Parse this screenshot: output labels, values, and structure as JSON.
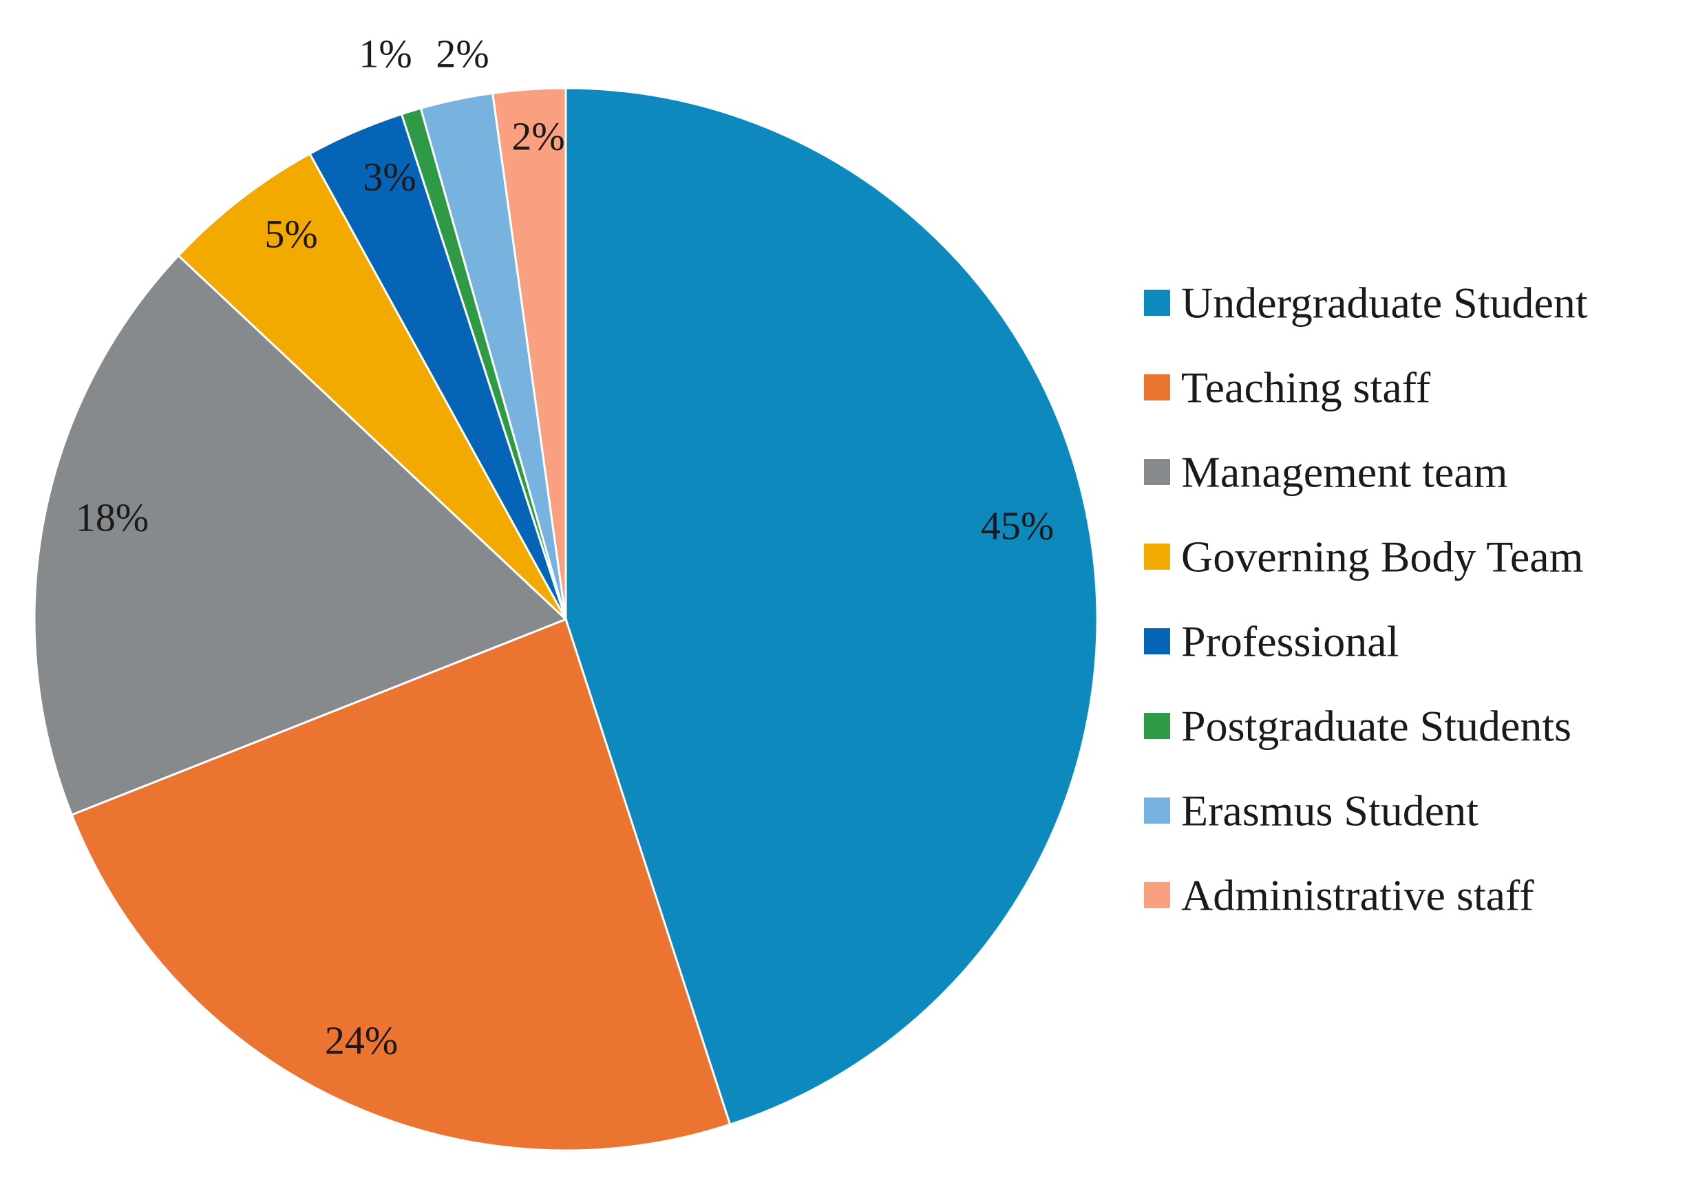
{
  "chart_data": {
    "type": "pie",
    "start": "12 o'clock",
    "direction": "clockwise",
    "legend": "right",
    "slices": [
      {
        "label": "Undergraduate Student",
        "value": 45,
        "value_label": "45%",
        "color": "#0E89BE"
      },
      {
        "label": "Teaching staff",
        "value": 24,
        "value_label": "24%",
        "color": "#EB7431"
      },
      {
        "label": "Management team",
        "value": 18,
        "value_label": "18%",
        "color": "#878A8C"
      },
      {
        "label": "Governing Body Team",
        "value": 5,
        "value_label": "5%",
        "color": "#F2A900"
      },
      {
        "label": "Professional",
        "value": 3,
        "value_label": "3%",
        "color": "#0664B6"
      },
      {
        "label": "Postgraduate Students",
        "value": 0.6,
        "value_label": "1%",
        "color": "#2E9A45"
      },
      {
        "label": "Erasmus Student",
        "value": 2.2,
        "value_label": "2%",
        "color": "#78B2DE"
      },
      {
        "label": "Administrative staff",
        "value": 2.2,
        "value_label": "2%",
        "color": "#F9A080"
      }
    ]
  }
}
